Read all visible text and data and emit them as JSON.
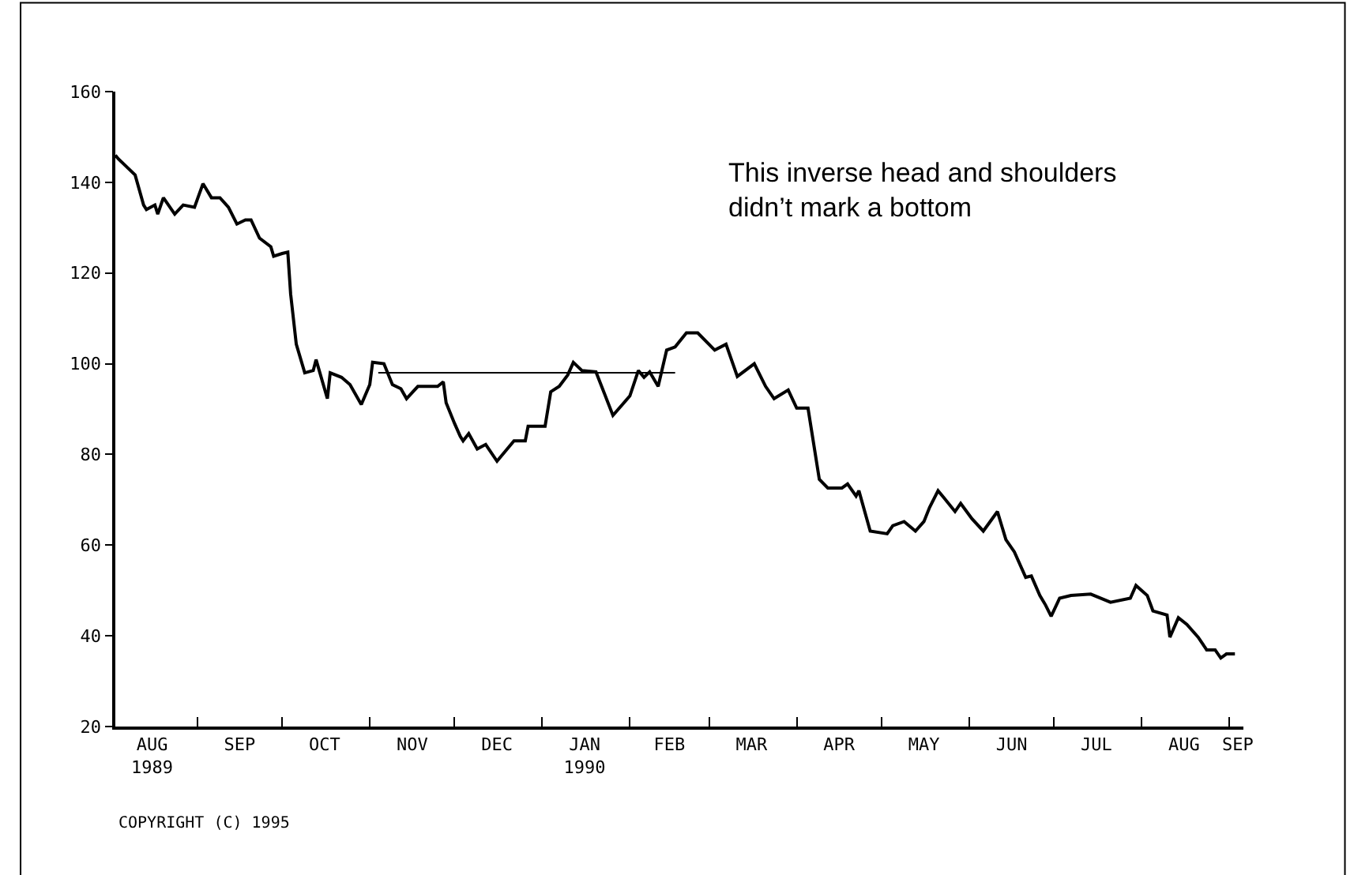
{
  "chart_data": {
    "type": "line",
    "series": [
      {
        "color": "#000000",
        "x": [
          "1989-08-03",
          "1989-08-04",
          "1989-08-10",
          "1989-08-13",
          "1989-08-14",
          "1989-08-17",
          "1989-08-18",
          "1989-08-20",
          "1989-08-24",
          "1989-08-27",
          "1989-08-31",
          "1989-09-03",
          "1989-09-06",
          "1989-09-09",
          "1989-09-12",
          "1989-09-15",
          "1989-09-18",
          "1989-09-20",
          "1989-09-23",
          "1989-09-27",
          "1989-09-28",
          "1989-10-01",
          "1989-10-03",
          "1989-10-04",
          "1989-10-06",
          "1989-10-09",
          "1989-10-12",
          "1989-10-13",
          "1989-10-17",
          "1989-10-18",
          "1989-10-22",
          "1989-10-25",
          "1989-10-29",
          "1989-11-01",
          "1989-11-02",
          "1989-11-06",
          "1989-11-09",
          "1989-11-12",
          "1989-11-14",
          "1989-11-18",
          "1989-11-25",
          "1989-11-27",
          "1989-11-28",
          "1989-12-01",
          "1989-12-03",
          "1989-12-04",
          "1989-12-06",
          "1989-12-09",
          "1989-12-12",
          "1989-12-16",
          "1989-12-22",
          "1989-12-26",
          "1989-12-27",
          "1990-01-02",
          "1990-01-04",
          "1990-01-07",
          "1990-01-10",
          "1990-01-12",
          "1990-01-15",
          "1990-01-20",
          "1990-01-22",
          "1990-01-26",
          "1990-02-01",
          "1990-02-04",
          "1990-02-06",
          "1990-02-08",
          "1990-02-11",
          "1990-02-14",
          "1990-02-17",
          "1990-02-21",
          "1990-02-25",
          "1990-03-03",
          "1990-03-07",
          "1990-03-11",
          "1990-03-17",
          "1990-03-21",
          "1990-03-24",
          "1990-03-29",
          "1990-04-01",
          "1990-04-05",
          "1990-04-09",
          "1990-04-12",
          "1990-04-17",
          "1990-04-19",
          "1990-04-22",
          "1990-04-23",
          "1990-04-27",
          "1990-05-03",
          "1990-05-05",
          "1990-05-09",
          "1990-05-13",
          "1990-05-16",
          "1990-05-18",
          "1990-05-21",
          "1990-05-23",
          "1990-05-27",
          "1990-05-29",
          "1990-06-02",
          "1990-06-06",
          "1990-06-11",
          "1990-06-14",
          "1990-06-17",
          "1990-06-21",
          "1990-06-23",
          "1990-06-26",
          "1990-06-28",
          "1990-06-30",
          "1990-07-03",
          "1990-07-07",
          "1990-07-14",
          "1990-07-21",
          "1990-07-28",
          "1990-07-30",
          "1990-08-03",
          "1990-08-05",
          "1990-08-10",
          "1990-08-11",
          "1990-08-14",
          "1990-08-17",
          "1990-08-21",
          "1990-08-24",
          "1990-08-27",
          "1990-08-29",
          "1990-08-31",
          "1990-09-03"
        ],
        "values": [
          146,
          145.2,
          141.6,
          135,
          134,
          135,
          133,
          136.6,
          133,
          135,
          134.5,
          139.7,
          136.6,
          136.6,
          134.5,
          130.8,
          131.7,
          131.7,
          127.7,
          125.8,
          123.7,
          124.3,
          124.6,
          115.4,
          104.3,
          98,
          98.5,
          100.9,
          92.3,
          98,
          97,
          95.4,
          91,
          95.4,
          100.3,
          100,
          95.4,
          94.5,
          92.3,
          95,
          95,
          96,
          91.4,
          86.8,
          84,
          83,
          84.6,
          81.2,
          82.2,
          78.5,
          83,
          83,
          86.2,
          86.2,
          93.8,
          95,
          97.5,
          100.3,
          98.5,
          98.2,
          95,
          88.6,
          92.9,
          98.5,
          97,
          98.2,
          95,
          103,
          103.7,
          106.8,
          106.8,
          103,
          104.3,
          97.2,
          100,
          95,
          92.3,
          94.2,
          90.2,
          90.2,
          74.5,
          72.6,
          72.6,
          73.5,
          70.8,
          72,
          63.1,
          62.5,
          64.3,
          65.2,
          63.1,
          65.2,
          68.3,
          72,
          70.5,
          67.4,
          69.2,
          65.8,
          63.1,
          67.4,
          61.2,
          58.5,
          52.9,
          53.2,
          48.9,
          46.8,
          44.3,
          48.3,
          48.9,
          49.2,
          47.4,
          48.3,
          51.1,
          48.9,
          45.5,
          44.6,
          39.7,
          44,
          42.5,
          39.7,
          36.9,
          36.9,
          35.1,
          36,
          36
        ]
      },
      {
        "color": "#000000",
        "x": [
          "1989-11-04",
          "1990-02-17"
        ],
        "values": [
          98,
          98
        ]
      }
    ],
    "annotations": [
      "This inverse head and shoulders\ndidn’t mark a bottom",
      "COPYRIGHT (C) 1995"
    ],
    "xlim": [
      "1989-08-03",
      "1990-09-06"
    ],
    "xticks": [
      {
        "value": "1989-08-16",
        "label": "AUG\n1989"
      },
      {
        "value": "1989-09-01",
        "label": null
      },
      {
        "value": "1989-09-16",
        "label": "SEP"
      },
      {
        "value": "1989-10-01",
        "label": null
      },
      {
        "value": "1989-10-16",
        "label": "OCT"
      },
      {
        "value": "1989-11-01",
        "label": null
      },
      {
        "value": "1989-11-16",
        "label": "NOV"
      },
      {
        "value": "1989-12-01",
        "label": null
      },
      {
        "value": "1989-12-16",
        "label": "DEC"
      },
      {
        "value": "1990-01-01",
        "label": null
      },
      {
        "value": "1990-01-16",
        "label": "JAN\n1990"
      },
      {
        "value": "1990-02-01",
        "label": null
      },
      {
        "value": "1990-02-15",
        "label": "FEB"
      },
      {
        "value": "1990-03-01",
        "label": null
      },
      {
        "value": "1990-03-16",
        "label": "MAR"
      },
      {
        "value": "1990-04-01",
        "label": null
      },
      {
        "value": "1990-04-16",
        "label": "APR"
      },
      {
        "value": "1990-05-01",
        "label": null
      },
      {
        "value": "1990-05-16",
        "label": "MAY"
      },
      {
        "value": "1990-06-01",
        "label": null
      },
      {
        "value": "1990-06-16",
        "label": "JUN"
      },
      {
        "value": "1990-07-01",
        "label": null
      },
      {
        "value": "1990-07-16",
        "label": "JUL"
      },
      {
        "value": "1990-08-01",
        "label": null
      },
      {
        "value": "1990-08-16",
        "label": "AUG"
      },
      {
        "value": "1990-09-01",
        "label": null
      },
      {
        "value": "1990-09-04",
        "label": "SEP"
      }
    ],
    "ylim": [
      20,
      160
    ],
    "yticks": [
      20,
      40,
      60,
      80,
      100,
      120,
      140,
      160
    ],
    "marker": "none",
    "line_style": "solid"
  }
}
